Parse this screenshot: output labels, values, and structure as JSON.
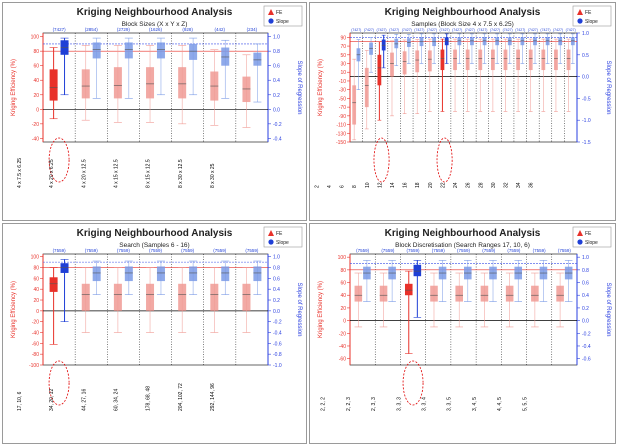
{
  "legend": {
    "fe_label": "FE",
    "slope_label": "Slope"
  },
  "colors": {
    "fe": "#e8312a",
    "fe_light": "#f09a94",
    "slope": "#1f3fd6",
    "slope_light": "#7a9ae6",
    "axis_fe": "#e8312a",
    "axis_slope": "#2a3fe0",
    "grid": "#000000",
    "ref_fe": "#e8312a",
    "ref_slope": "#3a4fe8"
  },
  "chart_data": [
    {
      "id": "block-sizes",
      "type": "box",
      "title": "Kriging Neighbourhood Analysis",
      "subtitle": "Block Sizes (X x Y x Z)",
      "ylabel_left": "Kriging Efficiency (%)",
      "ylabel_right": "Slope of Regression",
      "ylim_left": [
        -45,
        105
      ],
      "ylim_right": [
        -0.45,
        1.05
      ],
      "yticks_left": [
        -40,
        -20,
        0,
        20,
        40,
        60,
        80,
        100
      ],
      "yticks_right": [
        -0.4,
        -0.2,
        0.0,
        0.2,
        0.4,
        0.6,
        0.8,
        1.0
      ],
      "ref_fe": 80,
      "ref_slope": 0.9,
      "categories": [
        "4 x 7.5 x 6.25",
        "4 x 20 x 6.25",
        "4 x 20 x 12.5",
        "4 x 15 x 12.5",
        "8 x 15 x 12.5",
        "8 x 30 x 12.5",
        "8 x 30 x 25"
      ],
      "counts": [
        "(7427)",
        "(2854)",
        "(2729)",
        "(1626)",
        "(928)",
        "(442)",
        "(234)"
      ],
      "highlight": 0,
      "fe": [
        {
          "min": -13,
          "q1": 12,
          "median": 30,
          "q3": 55,
          "max": 85
        },
        {
          "min": -15,
          "q1": 15,
          "median": 32,
          "q3": 55,
          "max": 88
        },
        {
          "min": -18,
          "q1": 15,
          "median": 33,
          "q3": 58,
          "max": 88
        },
        {
          "min": -18,
          "q1": 15,
          "median": 35,
          "q3": 58,
          "max": 88
        },
        {
          "min": -20,
          "q1": 15,
          "median": 35,
          "q3": 58,
          "max": 88
        },
        {
          "min": -22,
          "q1": 12,
          "median": 32,
          "q3": 52,
          "max": 82
        },
        {
          "min": -25,
          "q1": 10,
          "median": 28,
          "q3": 45,
          "max": 75
        }
      ],
      "slope": [
        {
          "min": 0.2,
          "q1": 0.75,
          "median": 0.85,
          "q3": 0.95,
          "max": 0.98
        },
        {
          "min": 0.15,
          "q1": 0.7,
          "median": 0.82,
          "q3": 0.92,
          "max": 0.98
        },
        {
          "min": 0.15,
          "q1": 0.7,
          "median": 0.82,
          "q3": 0.92,
          "max": 0.98
        },
        {
          "min": 0.2,
          "q1": 0.7,
          "median": 0.82,
          "q3": 0.92,
          "max": 0.98
        },
        {
          "min": 0.2,
          "q1": 0.68,
          "median": 0.8,
          "q3": 0.9,
          "max": 0.98
        },
        {
          "min": 0.15,
          "q1": 0.6,
          "median": 0.72,
          "q3": 0.85,
          "max": 0.95
        },
        {
          "min": 0.1,
          "q1": 0.6,
          "median": 0.68,
          "q3": 0.78,
          "max": 0.9
        }
      ]
    },
    {
      "id": "samples",
      "type": "box",
      "title": "Kriging Neighbourhood Analysis",
      "subtitle": "Samples (Block Size 4 x 7.5 x 6.25)",
      "ylabel_left": "Kriging Efficiency (%)",
      "ylabel_right": "Slope of Regression",
      "ylim_left": [
        -150,
        100
      ],
      "ylim_right": [
        -1.5,
        1.0
      ],
      "yticks_left": [
        -150,
        -130,
        -110,
        -90,
        -70,
        -50,
        -30,
        -10,
        10,
        30,
        50,
        70,
        90
      ],
      "yticks_right": [
        -1.5,
        -1.0,
        -0.5,
        0.0,
        0.5,
        1.0
      ],
      "ref_fe": 80,
      "ref_slope": 0.9,
      "categories": [
        "2",
        "4",
        "6",
        "8",
        "10",
        "12",
        "14",
        "16",
        "18",
        "20",
        "22",
        "24",
        "26",
        "28",
        "30",
        "32",
        "34",
        "36"
      ],
      "counts": [
        "(7427)",
        "(7427)",
        "(7427)",
        "(7427)",
        "(7427)",
        "(7427)",
        "(7427)",
        "(7427)",
        "(7427)",
        "(7427)",
        "(7427)",
        "(7427)",
        "(7427)",
        "(7427)",
        "(7427)",
        "(7427)",
        "(7427)",
        "(7427)"
      ],
      "highlight": [
        2,
        7
      ],
      "fe": [
        {
          "min": -145,
          "q1": -110,
          "median": -60,
          "q3": -20,
          "max": 40
        },
        {
          "min": -120,
          "q1": -70,
          "median": -20,
          "q3": 20,
          "max": 60
        },
        {
          "min": -100,
          "q1": -20,
          "median": 20,
          "q3": 50,
          "max": 80
        },
        {
          "min": -90,
          "q1": 0,
          "median": 30,
          "q3": 55,
          "max": 82
        },
        {
          "min": -85,
          "q1": 5,
          "median": 35,
          "q3": 58,
          "max": 84
        },
        {
          "min": -85,
          "q1": 10,
          "median": 38,
          "q3": 60,
          "max": 85
        },
        {
          "min": -80,
          "q1": 12,
          "median": 40,
          "q3": 60,
          "max": 86
        },
        {
          "min": -80,
          "q1": 15,
          "median": 42,
          "q3": 62,
          "max": 86
        },
        {
          "min": -80,
          "q1": 15,
          "median": 42,
          "q3": 62,
          "max": 86
        },
        {
          "min": -80,
          "q1": 15,
          "median": 42,
          "q3": 62,
          "max": 86
        },
        {
          "min": -80,
          "q1": 15,
          "median": 42,
          "q3": 62,
          "max": 86
        },
        {
          "min": -80,
          "q1": 15,
          "median": 42,
          "q3": 62,
          "max": 86
        },
        {
          "min": -80,
          "q1": 15,
          "median": 42,
          "q3": 62,
          "max": 86
        },
        {
          "min": -80,
          "q1": 15,
          "median": 42,
          "q3": 62,
          "max": 86
        },
        {
          "min": -80,
          "q1": 15,
          "median": 42,
          "q3": 62,
          "max": 86
        },
        {
          "min": -80,
          "q1": 15,
          "median": 42,
          "q3": 62,
          "max": 86
        },
        {
          "min": -80,
          "q1": 15,
          "median": 42,
          "q3": 62,
          "max": 86
        },
        {
          "min": -80,
          "q1": 15,
          "median": 42,
          "q3": 62,
          "max": 86
        }
      ],
      "slope": [
        {
          "min": -0.3,
          "q1": 0.35,
          "median": 0.5,
          "q3": 0.65,
          "max": 0.85
        },
        {
          "min": 0.1,
          "q1": 0.5,
          "median": 0.65,
          "q3": 0.78,
          "max": 0.9
        },
        {
          "min": 0.2,
          "q1": 0.6,
          "median": 0.72,
          "q3": 0.85,
          "max": 0.95
        },
        {
          "min": 0.25,
          "q1": 0.65,
          "median": 0.75,
          "q3": 0.87,
          "max": 0.97
        },
        {
          "min": 0.3,
          "q1": 0.68,
          "median": 0.78,
          "q3": 0.88,
          "max": 0.97
        },
        {
          "min": 0.3,
          "q1": 0.7,
          "median": 0.8,
          "q3": 0.9,
          "max": 0.98
        },
        {
          "min": 0.3,
          "q1": 0.7,
          "median": 0.8,
          "q3": 0.9,
          "max": 0.98
        },
        {
          "min": 0.3,
          "q1": 0.72,
          "median": 0.82,
          "q3": 0.9,
          "max": 0.98
        },
        {
          "min": 0.3,
          "q1": 0.72,
          "median": 0.82,
          "q3": 0.9,
          "max": 0.98
        },
        {
          "min": 0.3,
          "q1": 0.72,
          "median": 0.82,
          "q3": 0.9,
          "max": 0.98
        },
        {
          "min": 0.3,
          "q1": 0.72,
          "median": 0.82,
          "q3": 0.9,
          "max": 0.98
        },
        {
          "min": 0.3,
          "q1": 0.72,
          "median": 0.82,
          "q3": 0.9,
          "max": 0.98
        },
        {
          "min": 0.3,
          "q1": 0.72,
          "median": 0.82,
          "q3": 0.9,
          "max": 0.98
        },
        {
          "min": 0.3,
          "q1": 0.72,
          "median": 0.82,
          "q3": 0.9,
          "max": 0.98
        },
        {
          "min": 0.3,
          "q1": 0.72,
          "median": 0.82,
          "q3": 0.9,
          "max": 0.98
        },
        {
          "min": 0.3,
          "q1": 0.72,
          "median": 0.82,
          "q3": 0.9,
          "max": 0.98
        },
        {
          "min": 0.3,
          "q1": 0.72,
          "median": 0.82,
          "q3": 0.9,
          "max": 0.98
        },
        {
          "min": 0.3,
          "q1": 0.72,
          "median": 0.82,
          "q3": 0.9,
          "max": 0.98
        }
      ]
    },
    {
      "id": "search",
      "type": "box",
      "title": "Kriging Neighbourhood Analysis",
      "subtitle": "Search (Samples 6 - 16)",
      "ylabel_left": "Kriging Efficiency (%)",
      "ylabel_right": "Slope of Regression",
      "ylim_left": [
        -100,
        105
      ],
      "ylim_right": [
        -1.0,
        1.05
      ],
      "yticks_left": [
        -100,
        -80,
        -60,
        -40,
        -20,
        0,
        20,
        40,
        60,
        80,
        100
      ],
      "yticks_right": [
        -1.0,
        -0.8,
        -0.6,
        -0.4,
        -0.2,
        0.0,
        0.2,
        0.4,
        0.6,
        0.8,
        1.0
      ],
      "ref_fe": 80,
      "ref_slope": 0.9,
      "categories": [
        "17, 10, 6",
        "34, 20, 12",
        "44, 27, 16",
        "60, 34, 24",
        "178, 68, 48",
        "204, 102, 72",
        "292, 144, 96"
      ],
      "counts": [
        "(7559)",
        "(7559)",
        "(7559)",
        "(7559)",
        "(7559)",
        "(7559)",
        "(7559)"
      ],
      "highlight": 0,
      "fe": [
        {
          "min": -62,
          "q1": 35,
          "median": 50,
          "q3": 62,
          "max": 80
        },
        {
          "min": -40,
          "q1": 0,
          "median": 30,
          "q3": 50,
          "max": 80
        },
        {
          "min": -40,
          "q1": 0,
          "median": 30,
          "q3": 50,
          "max": 80
        },
        {
          "min": -40,
          "q1": 0,
          "median": 30,
          "q3": 50,
          "max": 80
        },
        {
          "min": -40,
          "q1": 0,
          "median": 30,
          "q3": 50,
          "max": 80
        },
        {
          "min": -40,
          "q1": 0,
          "median": 30,
          "q3": 50,
          "max": 80
        },
        {
          "min": -40,
          "q1": 0,
          "median": 30,
          "q3": 50,
          "max": 80
        }
      ],
      "slope": [
        {
          "min": -0.2,
          "q1": 0.7,
          "median": 0.8,
          "q3": 0.88,
          "max": 0.95
        },
        {
          "min": 0.3,
          "q1": 0.55,
          "median": 0.7,
          "q3": 0.82,
          "max": 0.92
        },
        {
          "min": 0.3,
          "q1": 0.55,
          "median": 0.7,
          "q3": 0.82,
          "max": 0.92
        },
        {
          "min": 0.3,
          "q1": 0.55,
          "median": 0.7,
          "q3": 0.82,
          "max": 0.92
        },
        {
          "min": 0.3,
          "q1": 0.55,
          "median": 0.7,
          "q3": 0.82,
          "max": 0.92
        },
        {
          "min": 0.3,
          "q1": 0.55,
          "median": 0.7,
          "q3": 0.82,
          "max": 0.92
        },
        {
          "min": 0.3,
          "q1": 0.55,
          "median": 0.7,
          "q3": 0.82,
          "max": 0.92
        }
      ]
    },
    {
      "id": "block-discretisation",
      "type": "box",
      "title": "Kriging Neighbourhood Analysis",
      "subtitle": "Block Discretisation (Search Ranges 17, 10, 6)",
      "ylabel_left": "Kriging Efficiency (%)",
      "ylabel_right": "Slope of Regression",
      "ylim_left": [
        -70,
        105
      ],
      "ylim_right": [
        -0.7,
        1.05
      ],
      "yticks_left": [
        -60,
        -40,
        -20,
        0,
        20,
        40,
        60,
        80,
        100
      ],
      "yticks_right": [
        -0.6,
        -0.4,
        -0.2,
        0.0,
        0.2,
        0.4,
        0.6,
        0.8,
        1.0
      ],
      "ref_fe": 80,
      "ref_slope": 0.9,
      "categories": [
        "2, 2, 2",
        "2, 2, 3",
        "2, 3, 3",
        "3, 3, 3",
        "3, 3, 4",
        "3, 3, 5",
        "3, 4, 5",
        "4, 4, 5",
        "5, 5, 5"
      ],
      "counts": [
        "(7559)",
        "(7559)",
        "(7559)",
        "(7559)",
        "(7559)",
        "(7559)",
        "(7559)",
        "(7559)",
        "(7559)"
      ],
      "highlight": 2,
      "fe": [
        {
          "min": -10,
          "q1": 30,
          "median": 40,
          "q3": 55,
          "max": 75
        },
        {
          "min": -10,
          "q1": 30,
          "median": 40,
          "q3": 55,
          "max": 75
        },
        {
          "min": -52,
          "q1": 40,
          "median": 48,
          "q3": 58,
          "max": 78
        },
        {
          "min": -10,
          "q1": 30,
          "median": 40,
          "q3": 55,
          "max": 75
        },
        {
          "min": -10,
          "q1": 30,
          "median": 40,
          "q3": 55,
          "max": 75
        },
        {
          "min": -10,
          "q1": 30,
          "median": 40,
          "q3": 55,
          "max": 75
        },
        {
          "min": -10,
          "q1": 30,
          "median": 40,
          "q3": 55,
          "max": 75
        },
        {
          "min": -10,
          "q1": 30,
          "median": 40,
          "q3": 55,
          "max": 75
        },
        {
          "min": -10,
          "q1": 30,
          "median": 40,
          "q3": 55,
          "max": 75
        }
      ],
      "slope": [
        {
          "min": 0.3,
          "q1": 0.65,
          "median": 0.75,
          "q3": 0.85,
          "max": 0.95
        },
        {
          "min": 0.3,
          "q1": 0.65,
          "median": 0.75,
          "q3": 0.85,
          "max": 0.95
        },
        {
          "min": 0.05,
          "q1": 0.7,
          "median": 0.78,
          "q3": 0.88,
          "max": 0.95
        },
        {
          "min": 0.3,
          "q1": 0.65,
          "median": 0.75,
          "q3": 0.85,
          "max": 0.95
        },
        {
          "min": 0.3,
          "q1": 0.65,
          "median": 0.75,
          "q3": 0.85,
          "max": 0.95
        },
        {
          "min": 0.3,
          "q1": 0.65,
          "median": 0.75,
          "q3": 0.85,
          "max": 0.95
        },
        {
          "min": 0.3,
          "q1": 0.65,
          "median": 0.75,
          "q3": 0.85,
          "max": 0.95
        },
        {
          "min": 0.3,
          "q1": 0.65,
          "median": 0.75,
          "q3": 0.85,
          "max": 0.95
        },
        {
          "min": 0.3,
          "q1": 0.65,
          "median": 0.75,
          "q3": 0.85,
          "max": 0.95
        }
      ]
    }
  ]
}
